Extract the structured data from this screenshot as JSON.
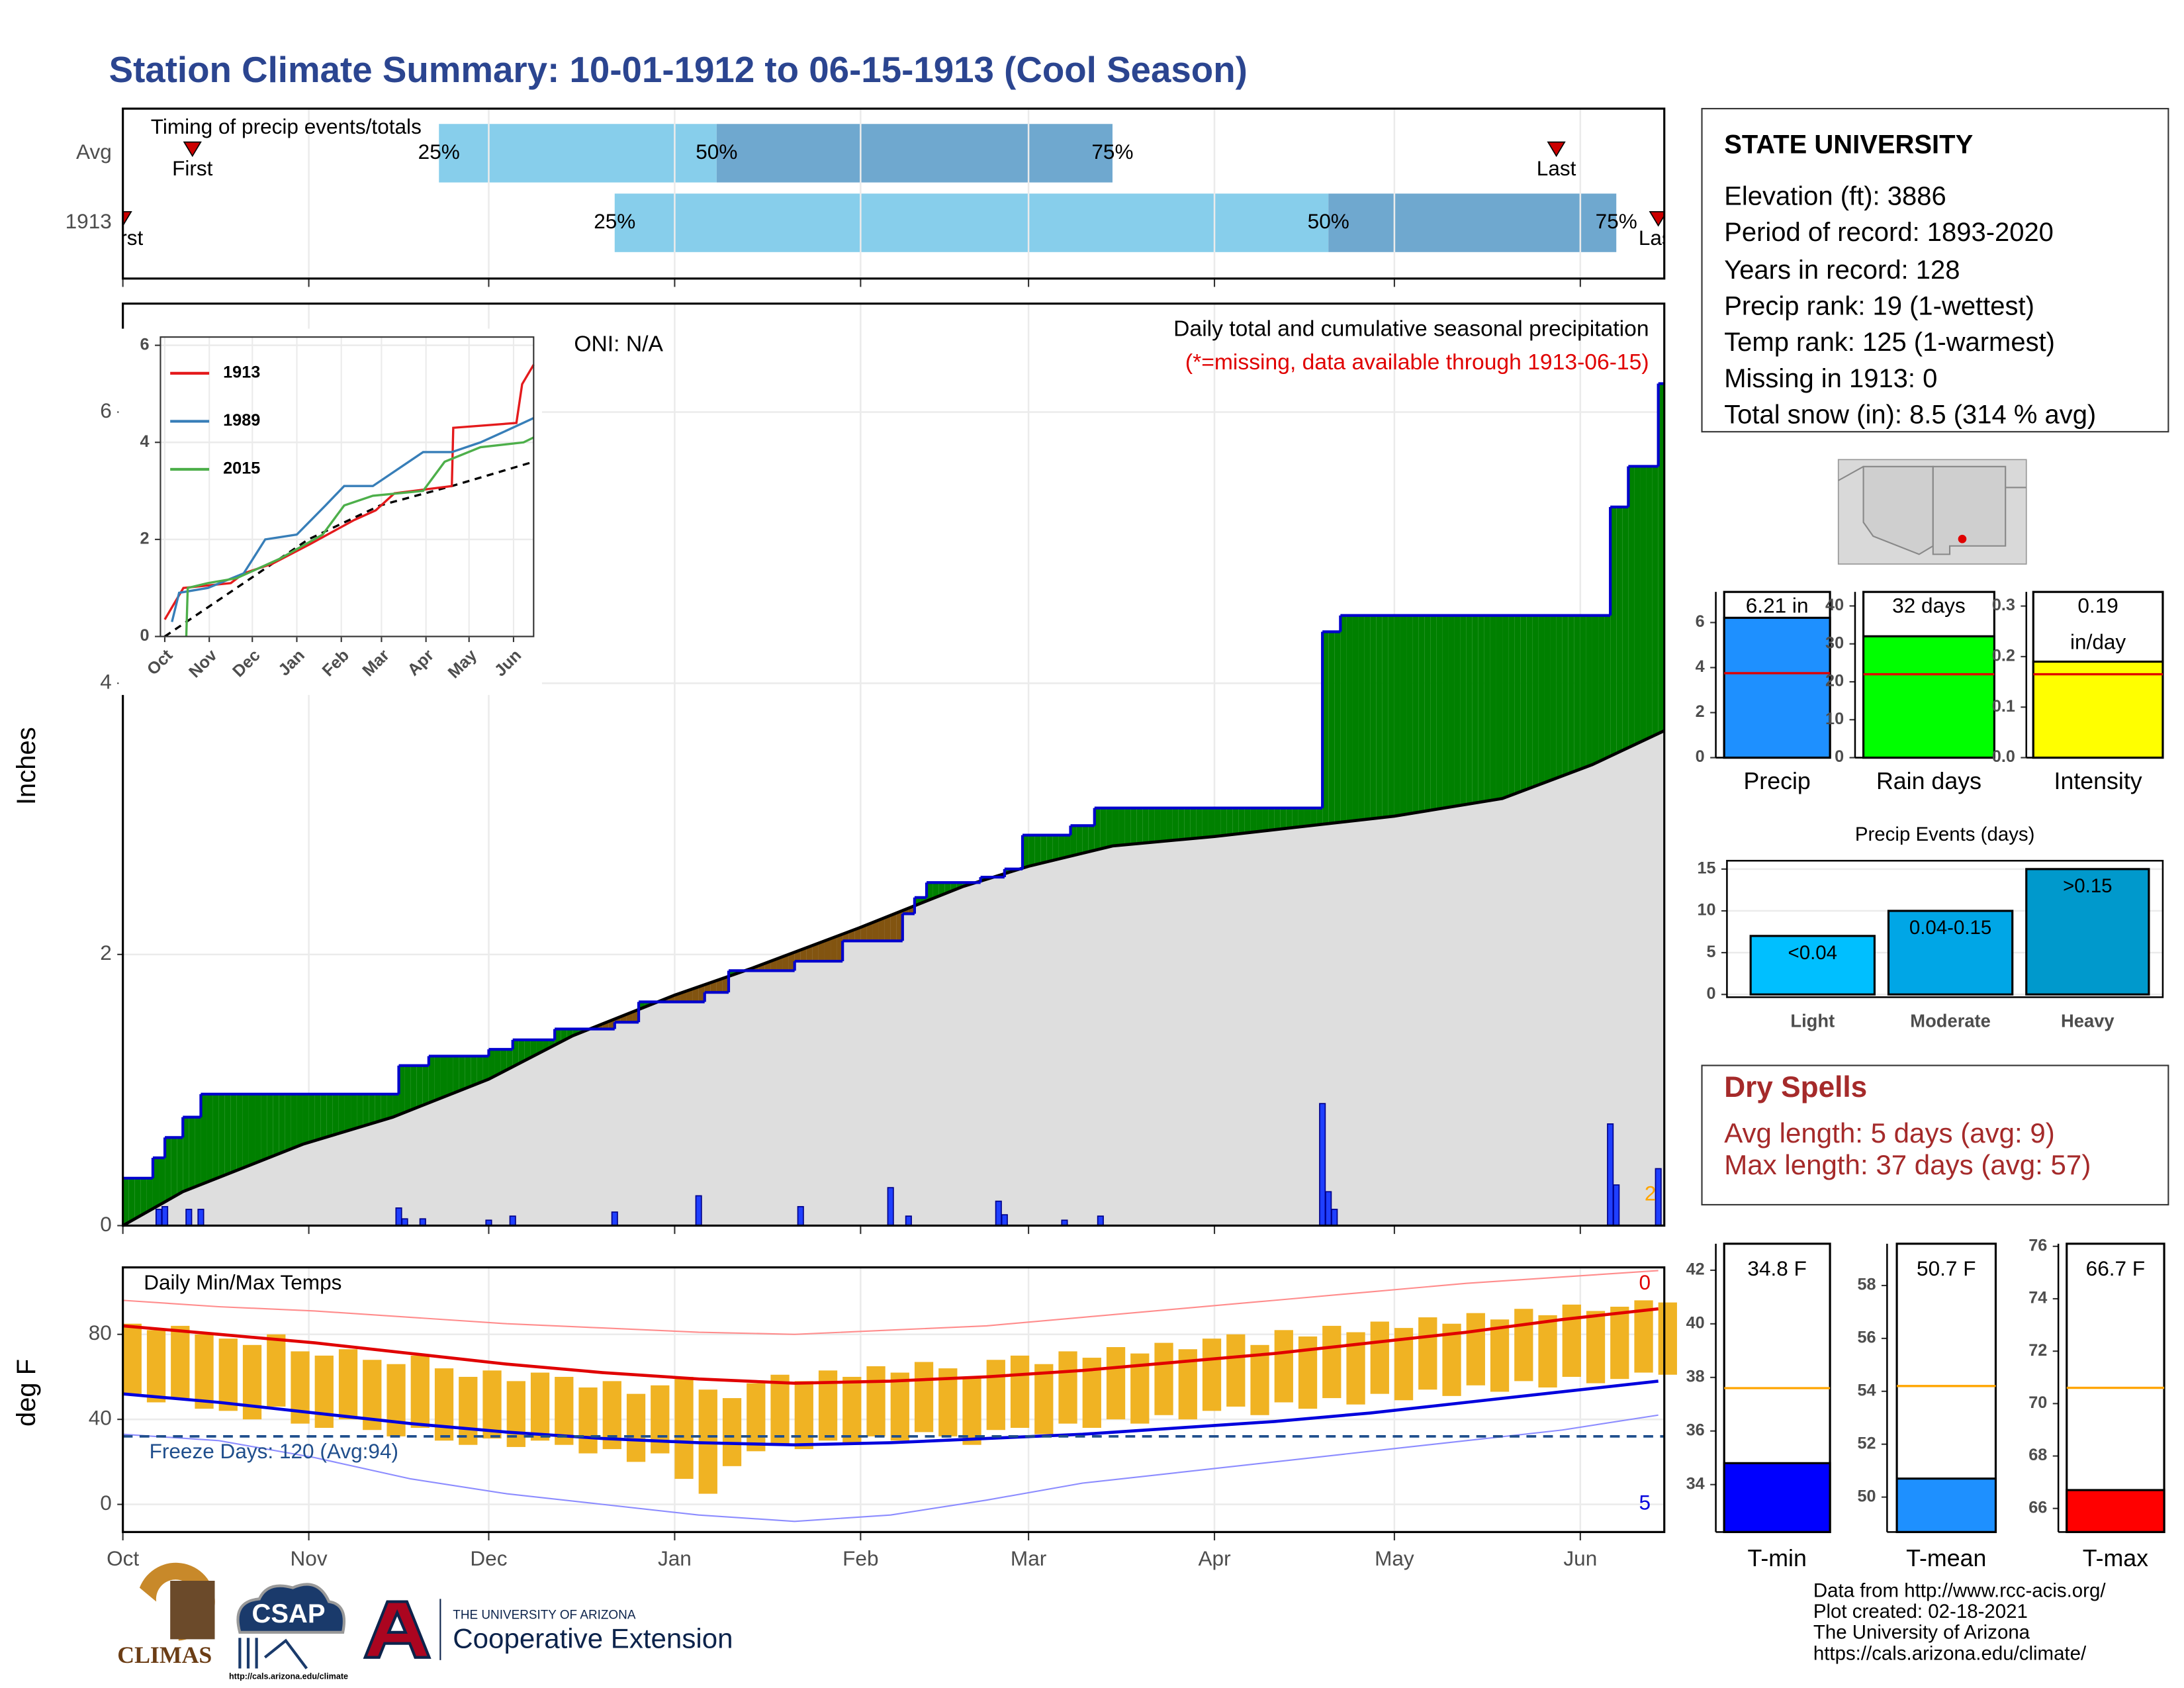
{
  "title": "Station Climate Summary: 10-01-1912 to 06-15-1913 (Cool Season)",
  "info": {
    "title": "STATE UNIVERSITY",
    "lines": [
      "Elevation (ft): 3886",
      "Period of record: 1893-2020",
      "Years in record: 128",
      "Precip rank: 19 (1-wettest)",
      "Temp rank: 125 (1-warmest)",
      "Missing in 1913: 0",
      "Total snow (in): 8.5 (314 % avg)"
    ]
  },
  "dry_spells": {
    "title": "Dry Spells",
    "lines": [
      "Avg length: 5 days (avg: 9)",
      "Max length: 37 days (avg: 57)"
    ]
  },
  "credits": [
    "Data from http://www.rcc-acis.org/",
    "Plot created: 02-18-2021",
    "The University of Arizona",
    "https://cals.arizona.edu/climate/"
  ],
  "footer": {
    "climas": "CLIMAS",
    "csap": "CSAP",
    "csap_url": "http://cals.arizona.edu/climate",
    "university": "THE UNIVERSITY OF ARIZONA",
    "extension": "Cooperative Extension"
  },
  "chart_data": [
    {
      "type": "timeline",
      "title": "Timing of precip events/totals",
      "xlim": [
        0,
        257
      ],
      "rows": [
        {
          "name": "Avg",
          "first": 11.6,
          "quantiles": [
            52.7,
            99,
            165
          ],
          "last": 239
        },
        {
          "name": "1913",
          "first": 0,
          "quantiles": [
            82,
            201,
            249
          ],
          "last": 256
        }
      ],
      "quantile_labels": [
        "25%",
        "50%",
        "75%"
      ],
      "end_labels": [
        "First",
        "Last"
      ],
      "colors": [
        "#87ceeb",
        "#6fa8cf"
      ],
      "marker_color": "#cc0000"
    },
    {
      "type": "cumulative",
      "title": "Daily total and cumulative seasonal precipitation",
      "subtitle": "(*=missing, data available through 1913-06-15)",
      "annotation": "ONI: N/A",
      "corner_label": "2",
      "ylabel": "Inches",
      "xlim": [
        0,
        257
      ],
      "ylim": [
        0,
        6.8
      ],
      "yticks": [
        0,
        2,
        4,
        6
      ],
      "grid": true,
      "observed": {
        "color": "#0000cd",
        "x": [
          0,
          5,
          7,
          10,
          13,
          46,
          51,
          61,
          65,
          72,
          82,
          86,
          97,
          101,
          112,
          120,
          130,
          132,
          134,
          143,
          147,
          150,
          158,
          162,
          200,
          203,
          248,
          251,
          256
        ],
        "values": [
          0.35,
          0.5,
          0.65,
          0.8,
          0.97,
          1.18,
          1.25,
          1.3,
          1.37,
          1.45,
          1.5,
          1.65,
          1.72,
          1.88,
          1.95,
          2.1,
          2.3,
          2.42,
          2.53,
          2.57,
          2.63,
          2.88,
          2.95,
          3.08,
          4.38,
          4.5,
          5.3,
          5.6,
          6.21
        ]
      },
      "average": {
        "color": "#000000",
        "fill": "#dedede",
        "x": [
          0,
          10,
          30,
          45,
          61,
          75,
          92,
          105,
          123,
          140,
          151,
          165,
          182,
          200,
          212,
          230,
          245,
          257
        ],
        "values": [
          0,
          0.25,
          0.6,
          0.8,
          1.08,
          1.4,
          1.7,
          1.9,
          2.2,
          2.5,
          2.65,
          2.8,
          2.87,
          2.96,
          3.02,
          3.15,
          3.4,
          3.65
        ]
      },
      "daily": {
        "color": "#1f3fff",
        "x": [
          6,
          7,
          11,
          13,
          46,
          47,
          50,
          61,
          65,
          82,
          96,
          113,
          128,
          131,
          146,
          147,
          157,
          163,
          200,
          201,
          202,
          248,
          249,
          256
        ],
        "values": [
          0.12,
          0.14,
          0.12,
          0.12,
          0.13,
          0.05,
          0.05,
          0.04,
          0.07,
          0.1,
          0.22,
          0.14,
          0.28,
          0.07,
          0.18,
          0.08,
          0.04,
          0.07,
          0.9,
          0.25,
          0.12,
          0.75,
          0.3,
          0.42
        ]
      },
      "surplus_color": "#008000",
      "deficit_color": "#825410"
    },
    {
      "type": "line",
      "xlim": [
        -3,
        257
      ],
      "ylim": [
        0,
        6.17
      ],
      "yticks": [
        0,
        2,
        4,
        6
      ],
      "xticks": [
        {
          "value": 0,
          "label": "Oct"
        },
        {
          "value": 31,
          "label": "Nov"
        },
        {
          "value": 61,
          "label": "Dec"
        },
        {
          "value": 92,
          "label": "Jan"
        },
        {
          "value": 123,
          "label": "Feb"
        },
        {
          "value": 151,
          "label": "Mar"
        },
        {
          "value": 182,
          "label": "Apr"
        },
        {
          "value": 212,
          "label": "May"
        },
        {
          "value": 243,
          "label": "Jun"
        }
      ],
      "series": [
        {
          "name": "1913",
          "color": "#e41a1c",
          "x": [
            0,
            13,
            46,
            55,
            75,
            101,
            132,
            147,
            160,
            200,
            201,
            245,
            249,
            257
          ],
          "values": [
            0.35,
            1.0,
            1.1,
            1.3,
            1.5,
            1.9,
            2.4,
            2.6,
            2.95,
            3.1,
            4.3,
            4.4,
            5.2,
            5.6
          ]
        },
        {
          "name": "1989",
          "color": "#377eb8",
          "x": [
            5,
            10,
            30,
            55,
            70,
            92,
            112,
            125,
            145,
            180,
            200,
            220,
            235,
            257
          ],
          "values": [
            0.3,
            0.9,
            1.0,
            1.3,
            2.0,
            2.1,
            2.7,
            3.1,
            3.1,
            3.8,
            3.8,
            4.0,
            4.2,
            4.5
          ]
        },
        {
          "name": "2015",
          "color": "#4daf4a",
          "x": [
            15,
            16,
            30,
            50,
            80,
            110,
            125,
            145,
            180,
            195,
            220,
            250,
            257
          ],
          "values": [
            0,
            1.0,
            1.1,
            1.2,
            1.6,
            2.1,
            2.7,
            2.9,
            3.0,
            3.6,
            3.9,
            4.0,
            4.1
          ]
        }
      ],
      "average": {
        "color": "#000000",
        "dashed": true,
        "x": [
          0,
          50,
          100,
          150,
          200,
          257
        ],
        "values": [
          0,
          1,
          2,
          2.7,
          3.1,
          3.6
        ]
      }
    },
    {
      "type": "temperature",
      "title": "Daily Min/Max Temps",
      "ylabel": "deg F",
      "xlim": [
        0,
        257
      ],
      "ylim": [
        -13,
        111.5
      ],
      "yticks": [
        0,
        40,
        80
      ],
      "grid": true,
      "xticks": [
        {
          "value": 0,
          "label": "Oct"
        },
        {
          "value": 31,
          "label": "Nov"
        },
        {
          "value": 61,
          "label": "Dec"
        },
        {
          "value": 92,
          "label": "Jan"
        },
        {
          "value": 123,
          "label": "Feb"
        },
        {
          "value": 151,
          "label": "Mar"
        },
        {
          "value": 182,
          "label": "Apr"
        },
        {
          "value": 212,
          "label": "May"
        },
        {
          "value": 243,
          "label": "Jun"
        }
      ],
      "days": {
        "color": "#f0b323",
        "x": [
          0,
          4,
          8,
          12,
          16,
          20,
          24,
          28,
          32,
          36,
          40,
          44,
          48,
          52,
          56,
          60,
          64,
          68,
          72,
          76,
          80,
          84,
          88,
          92,
          96,
          100,
          104,
          108,
          112,
          116,
          120,
          124,
          128,
          132,
          136,
          140,
          144,
          148,
          152,
          156,
          160,
          164,
          168,
          172,
          176,
          180,
          184,
          188,
          192,
          196,
          200,
          204,
          208,
          212,
          216,
          220,
          224,
          228,
          232,
          236,
          240,
          244,
          248,
          252,
          256
        ],
        "high": [
          85,
          82,
          84,
          80,
          78,
          75,
          80,
          72,
          70,
          73,
          68,
          66,
          70,
          64,
          60,
          63,
          58,
          62,
          60,
          55,
          58,
          52,
          56,
          60,
          54,
          50,
          57,
          61,
          58,
          63,
          60,
          65,
          62,
          67,
          64,
          60,
          68,
          70,
          66,
          72,
          69,
          74,
          71,
          76,
          73,
          78,
          80,
          75,
          82,
          79,
          84,
          81,
          86,
          83,
          88,
          85,
          90,
          87,
          92,
          89,
          94,
          91,
          93,
          96,
          95
        ],
        "low": [
          52,
          48,
          50,
          45,
          44,
          40,
          46,
          38,
          36,
          40,
          35,
          32,
          36,
          30,
          28,
          31,
          27,
          30,
          28,
          24,
          26,
          20,
          24,
          12,
          5,
          18,
          25,
          28,
          26,
          30,
          28,
          32,
          30,
          34,
          32,
          28,
          35,
          36,
          33,
          38,
          36,
          40,
          38,
          42,
          40,
          44,
          46,
          42,
          48,
          45,
          50,
          47,
          52,
          49,
          54,
          51,
          56,
          53,
          58,
          55,
          60,
          57,
          59,
          62,
          61
        ]
      },
      "lines_x": [
        0,
        16,
        32,
        48,
        64,
        80,
        96,
        112,
        128,
        144,
        160,
        176,
        192,
        208,
        224,
        240,
        256
      ],
      "lines": [
        {
          "color": "#ff8c8c",
          "width": 1,
          "values": [
            96,
            93,
            91,
            88,
            85,
            83,
            81,
            80,
            82,
            84,
            88,
            92,
            96,
            100,
            104,
            107,
            110
          ]
        },
        {
          "color": "#e00000",
          "width": 2.2,
          "values": [
            84,
            80,
            76,
            71,
            66,
            62,
            59,
            57,
            58,
            60,
            63,
            67,
            71,
            76,
            81,
            87,
            92
          ]
        },
        {
          "color": "#0000dd",
          "width": 2.2,
          "values": [
            52,
            48,
            43,
            38,
            34,
            31,
            29,
            28,
            29,
            31,
            33,
            36,
            39,
            43,
            48,
            53,
            58
          ]
        },
        {
          "color": "#8c8cff",
          "width": 1,
          "values": [
            33,
            30,
            22,
            12,
            5,
            0,
            -5,
            -8,
            -5,
            2,
            10,
            15,
            20,
            25,
            30,
            35,
            42
          ]
        }
      ],
      "freeze": 32,
      "freeze_color": "#1f4e8c",
      "freeze_label": "Freeze Days: 120 (Avg:94)",
      "annotations": [
        {
          "text": "0",
          "color": "#e00000"
        },
        {
          "text": "5",
          "color": "#0000dd"
        }
      ]
    },
    {
      "type": "bar",
      "categories": [
        "Precip"
      ],
      "values": [
        6.21
      ],
      "value_labels": [
        "6.21 in"
      ],
      "average": 3.75,
      "average_color": "#e00000",
      "color": "#1e90ff",
      "ylim": [
        0,
        7.36
      ],
      "yticks": [
        0,
        2,
        4,
        6
      ]
    },
    {
      "type": "bar",
      "categories": [
        "Rain days"
      ],
      "values": [
        32
      ],
      "value_labels": [
        "32 days"
      ],
      "average": 22,
      "average_color": "#e00000",
      "color": "#00ff00",
      "ylim": [
        0,
        43.7
      ],
      "yticks": [
        0,
        10,
        20,
        30,
        40
      ]
    },
    {
      "type": "bar",
      "categories": [
        "Intensity"
      ],
      "values": [
        0.19
      ],
      "value_labels": [
        "0.19\nin/day"
      ],
      "average": 0.165,
      "average_color": "#e00000",
      "color": "#ffff00",
      "ylim": [
        0,
        0.328
      ],
      "yticks": [
        {
          "value": 0,
          "label": "0.0"
        },
        {
          "value": 0.1,
          "label": "0.1"
        },
        {
          "value": 0.2,
          "label": "0.2"
        },
        {
          "value": 0.3,
          "label": "0.3"
        }
      ]
    },
    {
      "type": "bar",
      "title": "Precip Events (days)",
      "categories": [
        "Light",
        "Moderate",
        "Heavy"
      ],
      "values": [
        7,
        10,
        15
      ],
      "bin_labels": [
        "<0.04",
        "0.04-0.15",
        ">0.15"
      ],
      "colors": [
        "#00bfff",
        "#00a6e6",
        "#0099cc"
      ],
      "ylim": [
        -0.33,
        16
      ],
      "yticks": [
        0,
        5,
        10,
        15
      ],
      "grid": true
    },
    {
      "type": "bar",
      "categories": [
        "T-min"
      ],
      "values": [
        34.8
      ],
      "value_labels": [
        "34.8 F"
      ],
      "average": 37.6,
      "average_color": "#ffa500",
      "color": "#0000ff",
      "ylim": [
        32.23,
        42.99
      ],
      "yticks": [
        34,
        36,
        38,
        40,
        42
      ]
    },
    {
      "type": "bar",
      "categories": [
        "T-mean"
      ],
      "values": [
        50.7
      ],
      "value_labels": [
        "50.7 F"
      ],
      "average": 54.2,
      "average_color": "#ffa500",
      "color": "#1e90ff",
      "ylim": [
        48.68,
        59.58
      ],
      "yticks": [
        50,
        52,
        54,
        56,
        58
      ]
    },
    {
      "type": "bar",
      "categories": [
        "T-max"
      ],
      "values": [
        66.7
      ],
      "value_labels": [
        "66.7 F"
      ],
      "average": 70.6,
      "average_color": "#ffa500",
      "color": "#ff0000",
      "ylim": [
        65.1,
        76.1
      ],
      "yticks": [
        66,
        68,
        70,
        72,
        74,
        76
      ]
    }
  ]
}
